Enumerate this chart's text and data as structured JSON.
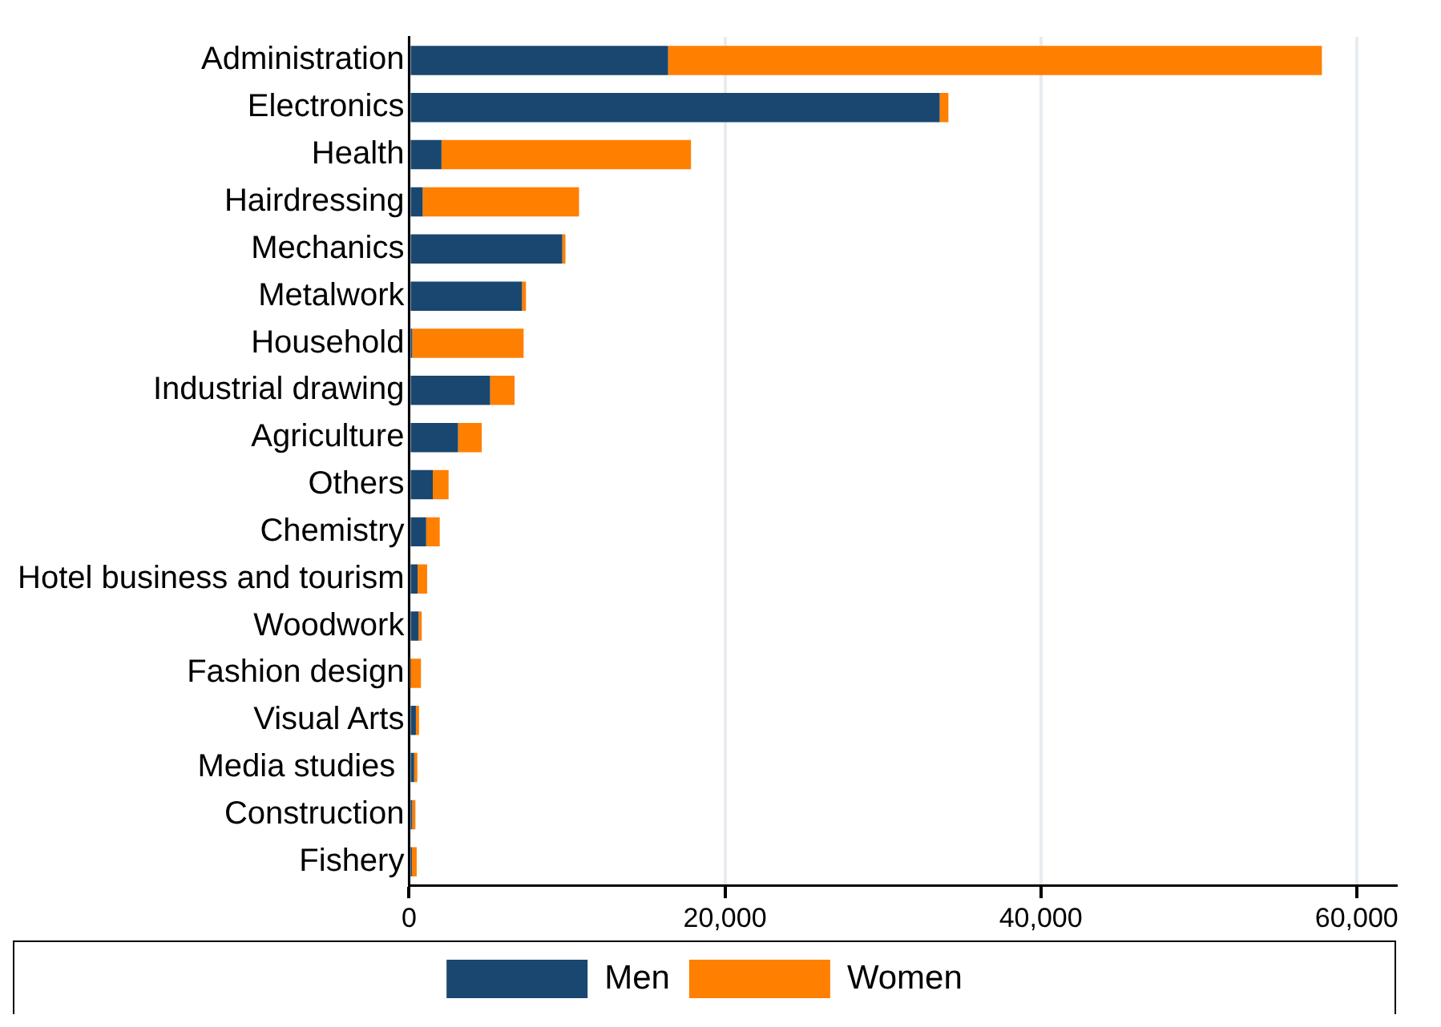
{
  "chart_data": {
    "type": "bar",
    "orientation": "horizontal",
    "stacked": true,
    "categories": [
      "Administration",
      "Electronics",
      "Health",
      "Hairdressing",
      "Mechanics",
      "Metalwork",
      "Household",
      "Industrial drawing",
      "Agriculture",
      "Others",
      "Chemistry",
      "Hotel business and tourism",
      "Woodwork",
      "Fashion design",
      "Visual Arts",
      "Media studies ",
      "Construction",
      "Fishery"
    ],
    "series": [
      {
        "name": "Men",
        "color": "#1a476f",
        "values": [
          16400,
          33600,
          2050,
          860,
          9700,
          7150,
          200,
          5130,
          3100,
          1500,
          1080,
          540,
          600,
          50,
          430,
          320,
          200,
          180
        ]
      },
      {
        "name": "Women",
        "color": "#ff7f00",
        "values": [
          41400,
          550,
          15800,
          9900,
          200,
          250,
          7050,
          1550,
          1500,
          1000,
          860,
          600,
          200,
          700,
          200,
          200,
          200,
          300
        ]
      }
    ],
    "xlim": [
      0,
      62500
    ],
    "xticks": [
      0,
      {
        "value": 20000,
        "label": "20,000"
      },
      {
        "value": 40000,
        "label": "40,000"
      },
      {
        "value": 60000,
        "label": "60,000"
      }
    ],
    "grid": "x",
    "legend": "bottom"
  }
}
